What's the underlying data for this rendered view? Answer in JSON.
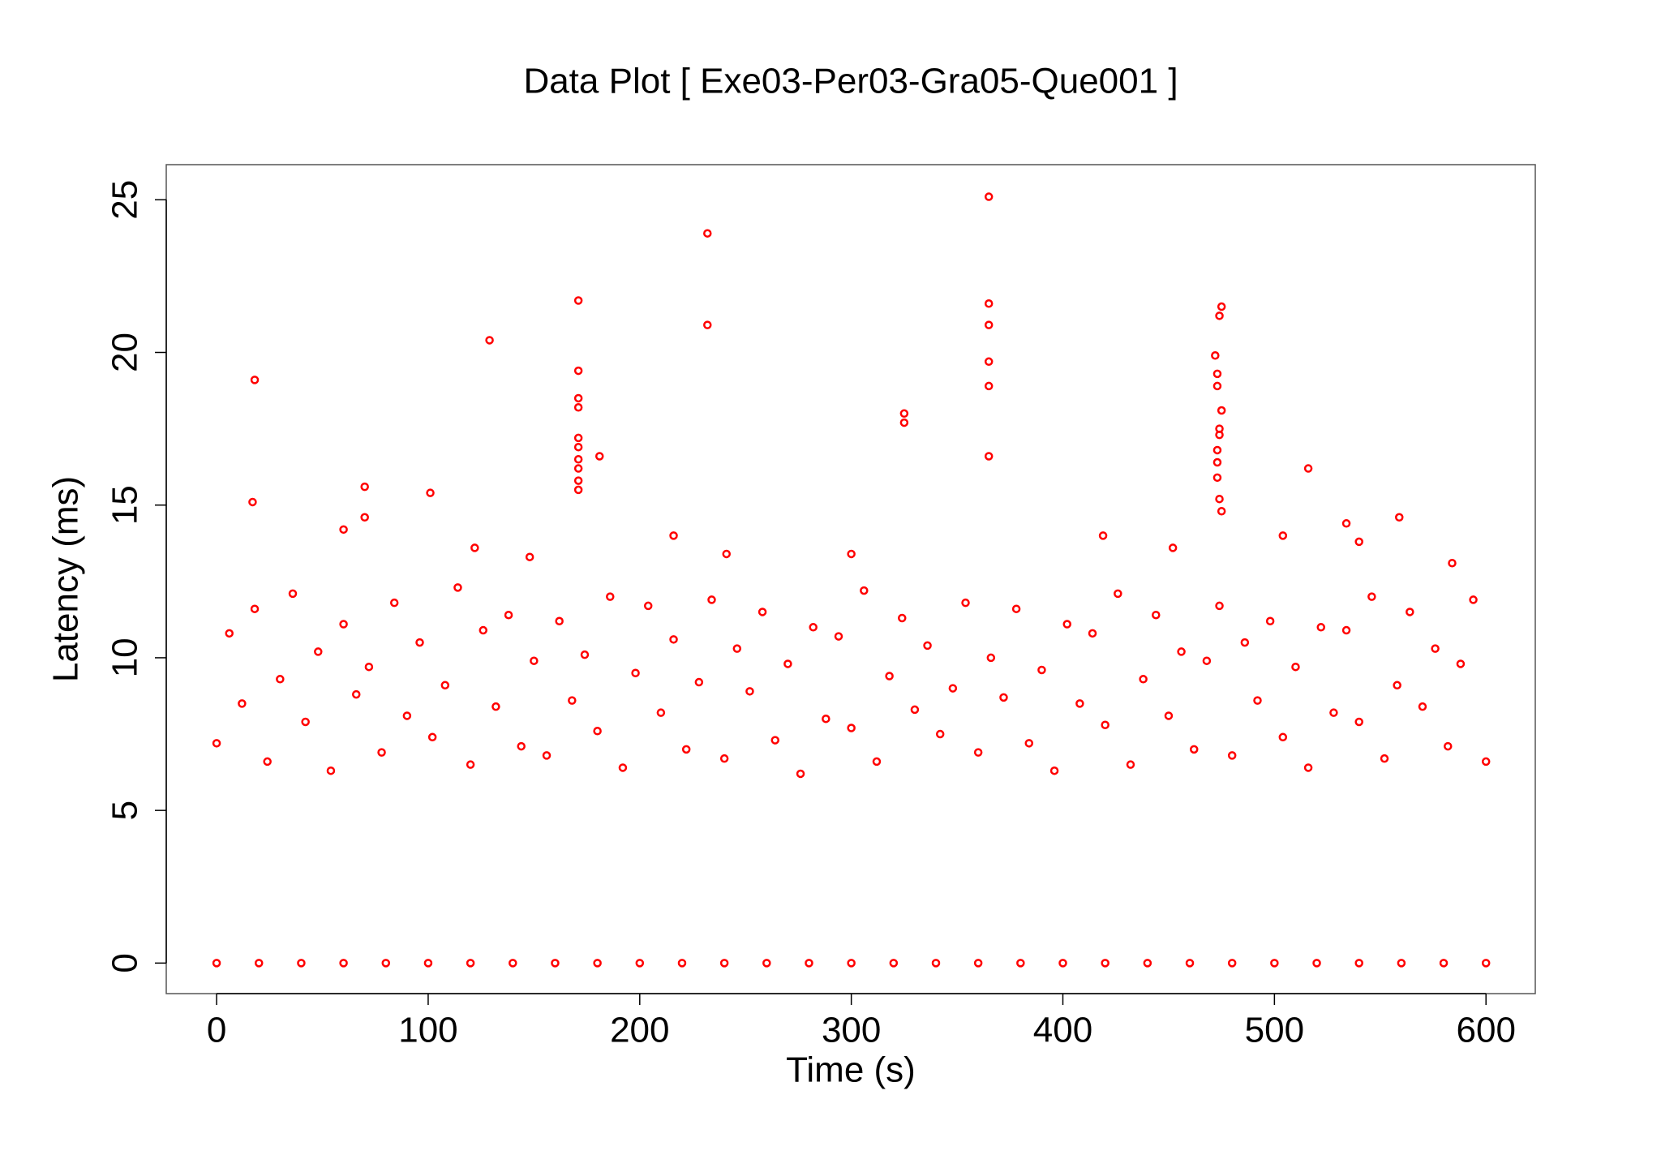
{
  "chart_data": {
    "type": "scatter",
    "title": "Data Plot [ Exe03-Per03-Gra05-Que001 ]",
    "x_label": "Time (s)",
    "y_label": "Latency (ms)",
    "color": "#ff0000",
    "xlim": [
      -23.8,
      623.3
    ],
    "ylim": [
      -1.0,
      26.15
    ],
    "xticks": [
      0,
      100,
      200,
      300,
      400,
      500,
      600
    ],
    "yticks": [
      0,
      5,
      10,
      15,
      20,
      25
    ],
    "x": [
      0,
      6,
      12,
      18,
      24,
      30,
      36,
      42,
      48,
      54,
      60,
      66,
      72,
      78,
      84,
      90,
      96,
      102,
      108,
      114,
      120,
      126,
      132,
      138,
      144,
      150,
      156,
      162,
      168,
      174,
      180,
      186,
      192,
      198,
      204,
      210,
      216,
      222,
      228,
      234,
      240,
      246,
      252,
      258,
      264,
      270,
      276,
      282,
      288,
      294,
      300,
      306,
      312,
      318,
      324,
      330,
      336,
      342,
      348,
      354,
      360,
      366,
      372,
      378,
      384,
      390,
      396,
      402,
      408,
      414,
      420,
      426,
      432,
      438,
      444,
      450,
      456,
      462,
      468,
      474,
      480,
      486,
      492,
      498,
      504,
      510,
      516,
      522,
      528,
      534,
      540,
      546,
      552,
      558,
      564,
      570,
      576,
      582,
      588,
      594,
      600,
      18,
      17,
      70,
      70,
      101,
      129,
      171,
      171,
      171,
      171,
      171,
      171,
      171,
      171,
      171,
      171,
      181,
      232,
      232,
      325,
      325,
      365,
      365,
      365,
      365,
      365,
      365,
      472,
      473,
      473,
      474,
      475,
      475,
      474,
      474,
      473,
      473,
      473,
      474,
      475,
      516,
      559,
      534,
      60,
      216,
      419,
      504,
      122,
      148,
      241,
      300,
      452,
      540,
      584,
      0,
      20,
      40,
      60,
      80,
      100,
      120,
      140,
      160,
      180,
      200,
      220,
      240,
      260,
      280,
      300,
      320,
      340,
      360,
      380,
      400,
      420,
      440,
      460,
      480,
      500,
      520,
      540,
      560,
      580,
      600
    ],
    "values": [
      7.2,
      10.8,
      8.5,
      11.6,
      6.6,
      9.3,
      12.1,
      7.9,
      10.2,
      6.3,
      11.1,
      8.8,
      9.7,
      6.9,
      11.8,
      8.1,
      10.5,
      7.4,
      9.1,
      12.3,
      6.5,
      10.9,
      8.4,
      11.4,
      7.1,
      9.9,
      6.8,
      11.2,
      8.6,
      10.1,
      7.6,
      12.0,
      6.4,
      9.5,
      11.7,
      8.2,
      10.6,
      7.0,
      9.2,
      11.9,
      6.7,
      10.3,
      8.9,
      11.5,
      7.3,
      9.8,
      6.2,
      11.0,
      8.0,
      10.7,
      7.7,
      12.2,
      6.6,
      9.4,
      11.3,
      8.3,
      10.4,
      7.5,
      9.0,
      11.8,
      6.9,
      10.0,
      8.7,
      11.6,
      7.2,
      9.6,
      6.3,
      11.1,
      8.5,
      10.8,
      7.8,
      12.1,
      6.5,
      9.3,
      11.4,
      8.1,
      10.2,
      7.0,
      9.9,
      11.7,
      6.8,
      10.5,
      8.6,
      11.2,
      7.4,
      9.7,
      6.4,
      11.0,
      8.2,
      10.9,
      7.9,
      12.0,
      6.7,
      9.1,
      11.5,
      8.4,
      10.3,
      7.1,
      9.8,
      11.9,
      6.6,
      19.1,
      15.1,
      15.6,
      14.6,
      15.4,
      20.4,
      21.7,
      19.4,
      18.5,
      18.2,
      17.2,
      16.9,
      16.5,
      16.2,
      15.8,
      15.5,
      16.6,
      23.9,
      20.9,
      18.0,
      17.7,
      25.1,
      21.6,
      20.9,
      19.7,
      18.9,
      16.6,
      19.9,
      19.3,
      18.9,
      21.2,
      21.5,
      18.1,
      17.5,
      17.3,
      16.8,
      16.4,
      15.9,
      15.2,
      14.8,
      16.2,
      14.6,
      14.4,
      14.2,
      14.0,
      14.0,
      14.0,
      13.6,
      13.3,
      13.4,
      13.4,
      13.6,
      13.8,
      13.1,
      0,
      0,
      0,
      0,
      0,
      0,
      0,
      0,
      0,
      0,
      0,
      0,
      0,
      0,
      0,
      0,
      0,
      0,
      0,
      0,
      0,
      0,
      0,
      0,
      0,
      0,
      0,
      0,
      0,
      0,
      0
    ]
  }
}
